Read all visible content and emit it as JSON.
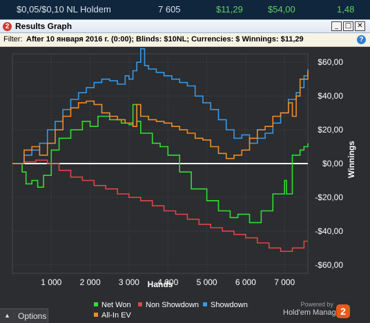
{
  "top_row": {
    "game": "$0,05/$0,10 NL Holdem",
    "hands": "7 605",
    "v1": "$11,29",
    "v2": "$54,00",
    "v3": "1,48"
  },
  "window": {
    "app_icon": "2",
    "title": "Results Graph",
    "minimize": "_",
    "maximize": "□",
    "close": "✕"
  },
  "filter": {
    "label": "Filter:",
    "text": "After 10 января 2016 г. (0:00); Blinds: $10NL; Currencies: $ Winnings: $11,29",
    "help": "?"
  },
  "footer": {
    "options_label": "Options",
    "powered_by": "Powered by",
    "brand": "Hold'em Manager",
    "brand_logo": "2"
  },
  "colors": {
    "net_won": "#33dd33",
    "non_showdown": "#e04545",
    "showdown": "#3a98e4",
    "all_in_ev": "#f08c2c",
    "background": "#2b2d30"
  },
  "chart_data": {
    "type": "line",
    "title": "",
    "xlabel": "Hands",
    "ylabel": "Winnings",
    "xlim": [
      0,
      7600
    ],
    "ylim": [
      -65,
      65
    ],
    "x_ticks": [
      1000,
      2000,
      3000,
      4000,
      5000,
      6000,
      7000
    ],
    "x_tick_labels": [
      "1 000",
      "2 000",
      "3 000",
      "4 000",
      "5 000",
      "6 000",
      "7 000"
    ],
    "y_ticks": [
      60,
      40,
      20,
      0,
      -20,
      -40,
      -60
    ],
    "y_tick_labels": [
      "$60,00",
      "$40,00",
      "$20,00",
      "$0,00",
      "-$20,00",
      "-$40,00",
      "-$60,00"
    ],
    "grid": true,
    "legend_position": "bottom",
    "series": [
      {
        "name": "Net Won",
        "color": "#33dd33",
        "x": [
          0,
          250,
          350,
          500,
          650,
          800,
          1000,
          1200,
          1500,
          1800,
          2000,
          2200,
          2500,
          2800,
          3000,
          3100,
          3200,
          3300,
          3600,
          3800,
          4000,
          4300,
          4600,
          5000,
          5300,
          5600,
          5800,
          6100,
          6400,
          6700,
          7000,
          7050,
          7200,
          7400,
          7500,
          7600
        ],
        "y": [
          0,
          -5,
          -12,
          -10,
          -14,
          -7,
          8,
          15,
          20,
          25,
          22,
          28,
          26,
          24,
          23,
          35,
          25,
          18,
          12,
          10,
          5,
          -5,
          -15,
          -22,
          -28,
          -32,
          -30,
          -35,
          -28,
          -18,
          -10,
          -18,
          5,
          8,
          10,
          12
        ]
      },
      {
        "name": "Non Showdown",
        "color": "#e04545",
        "x": [
          0,
          300,
          600,
          900,
          1200,
          1500,
          1800,
          2100,
          2400,
          2700,
          3000,
          3300,
          3600,
          3900,
          4200,
          4500,
          4800,
          5100,
          5400,
          5700,
          6000,
          6300,
          6600,
          6900,
          7200,
          7500,
          7600
        ],
        "y": [
          0,
          1,
          2,
          0,
          -4,
          -8,
          -10,
          -13,
          -15,
          -18,
          -20,
          -22,
          -25,
          -28,
          -30,
          -33,
          -36,
          -38,
          -40,
          -42,
          -44,
          -47,
          -50,
          -52,
          -50,
          -46,
          -46
        ]
      },
      {
        "name": "Showdown",
        "color": "#3a98e4",
        "x": [
          0,
          300,
          500,
          700,
          900,
          1100,
          1300,
          1500,
          1700,
          1900,
          2100,
          2300,
          2500,
          2700,
          2900,
          3000,
          3100,
          3200,
          3300,
          3400,
          3500,
          3700,
          3900,
          4100,
          4300,
          4500,
          4700,
          4900,
          5100,
          5300,
          5500,
          5700,
          5900,
          6100,
          6300,
          6500,
          6700,
          6900,
          7100,
          7300,
          7400,
          7500,
          7600
        ],
        "y": [
          0,
          5,
          8,
          12,
          20,
          25,
          32,
          38,
          42,
          45,
          48,
          50,
          49,
          47,
          52,
          50,
          55,
          60,
          68,
          58,
          56,
          54,
          52,
          50,
          48,
          46,
          40,
          36,
          32,
          26,
          20,
          15,
          17,
          12,
          15,
          18,
          24,
          30,
          38,
          42,
          45,
          52,
          56
        ]
      },
      {
        "name": "All-In EV",
        "color": "#f08c2c",
        "x": [
          0,
          300,
          500,
          700,
          900,
          1100,
          1300,
          1500,
          1700,
          1900,
          2100,
          2300,
          2500,
          2700,
          2900,
          3100,
          3200,
          3300,
          3500,
          3700,
          3900,
          4100,
          4300,
          4500,
          4700,
          4900,
          5100,
          5300,
          5500,
          5700,
          5900,
          6100,
          6300,
          6500,
          6700,
          6900,
          7100,
          7200,
          7300,
          7400,
          7600
        ],
        "y": [
          0,
          8,
          10,
          5,
          12,
          20,
          28,
          33,
          36,
          37,
          35,
          30,
          28,
          26,
          24,
          22,
          35,
          28,
          26,
          25,
          24,
          22,
          20,
          18,
          15,
          14,
          10,
          6,
          3,
          5,
          8,
          15,
          20,
          22,
          28,
          30,
          36,
          28,
          40,
          50,
          55
        ]
      }
    ]
  }
}
